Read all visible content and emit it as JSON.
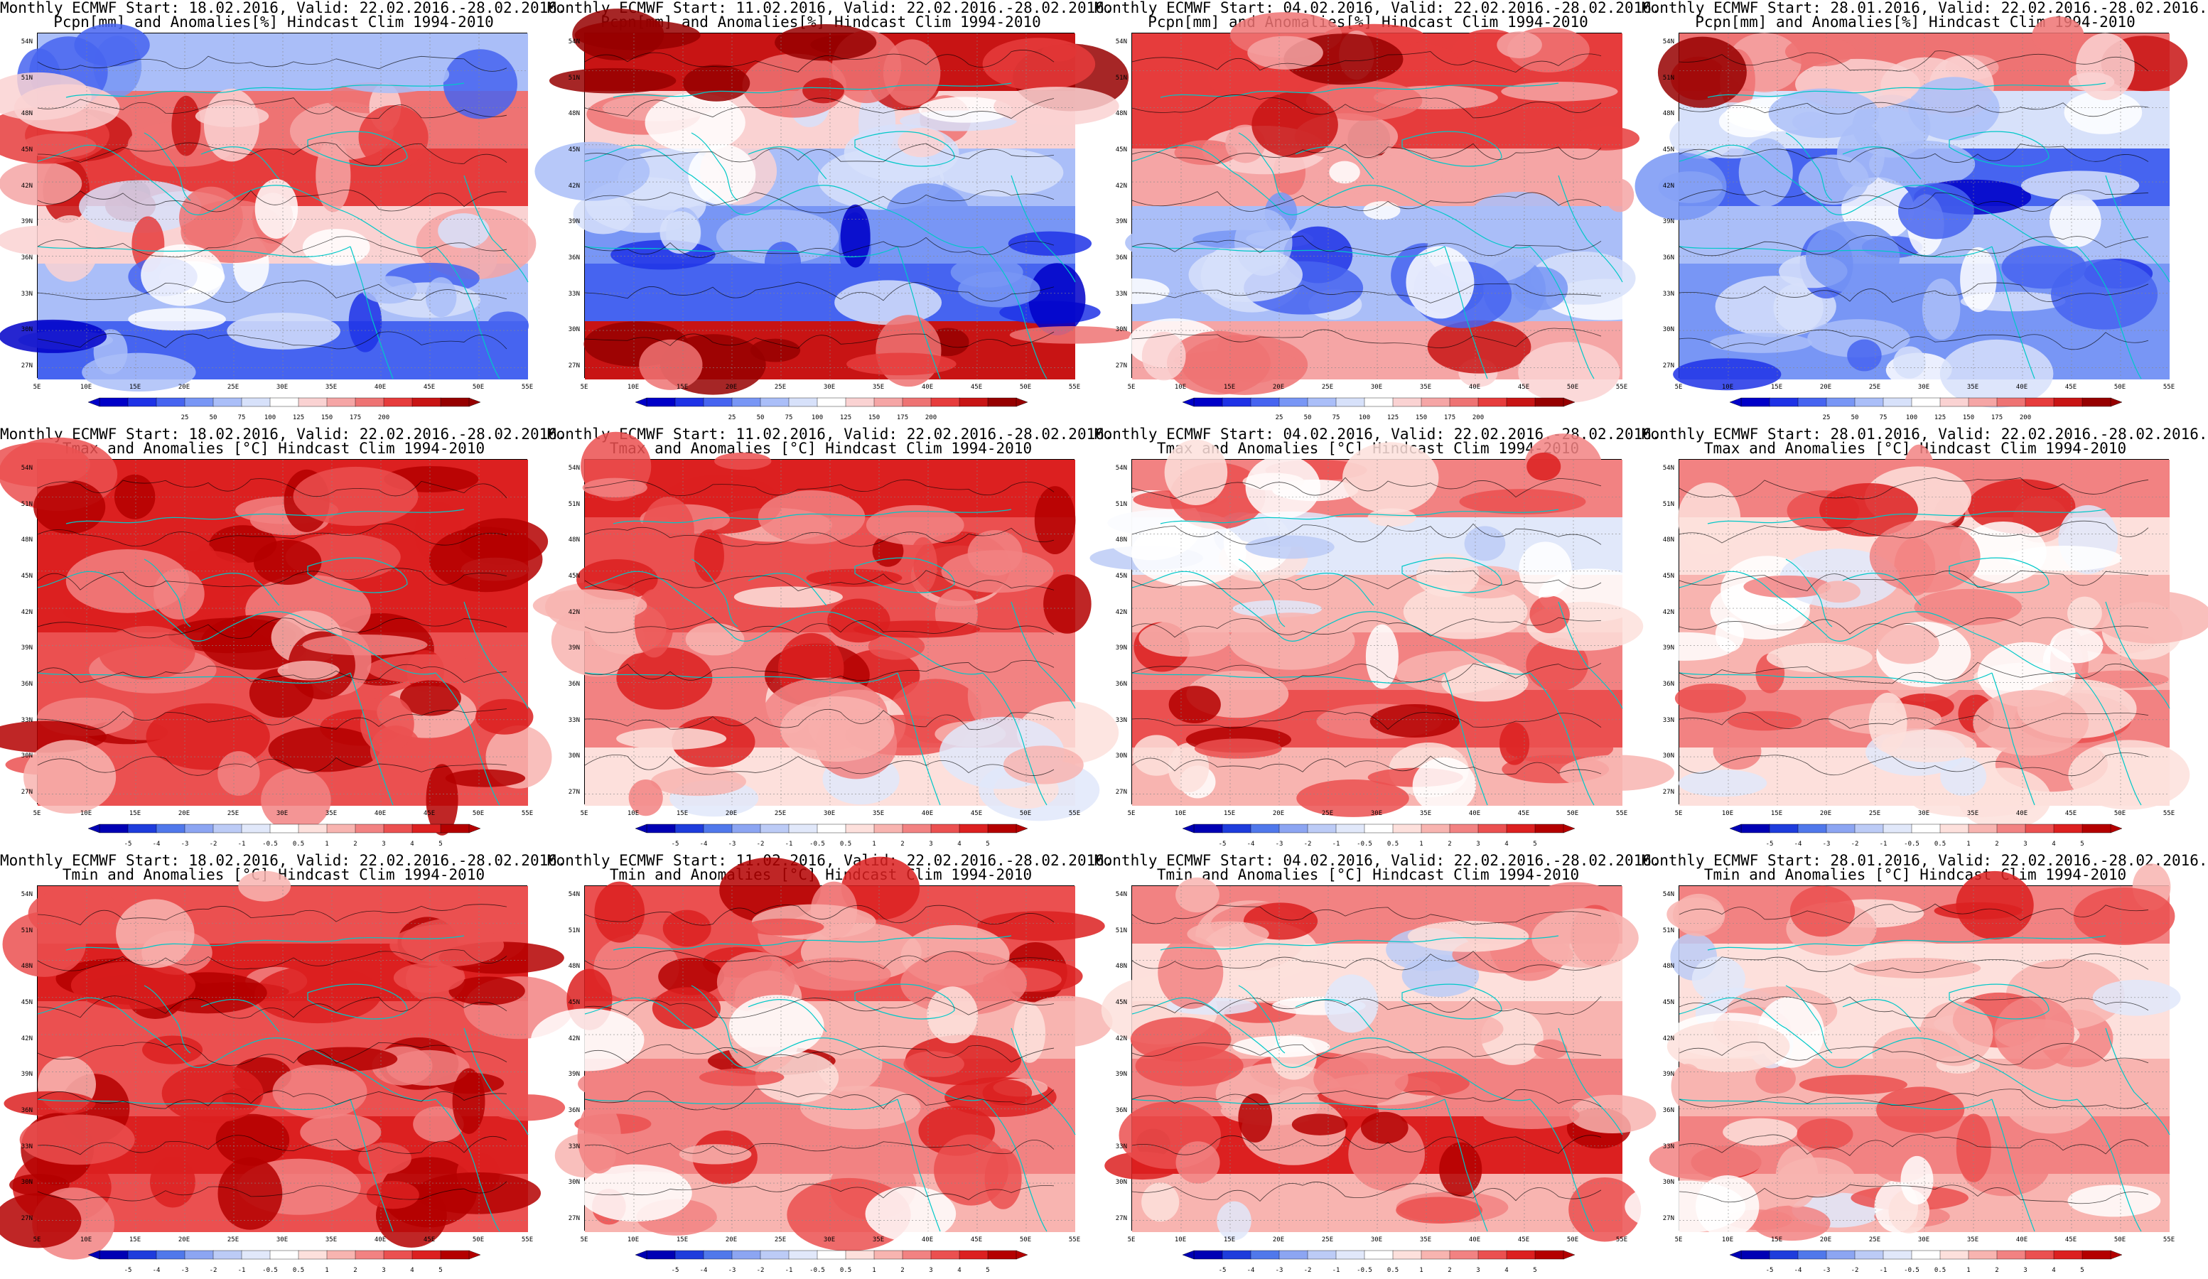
{
  "title_line1": [
    "Monthly ECMWF Start: 18.02.2016, Valid: 22.02.2016.-28.02.2016.",
    "Monthly ECMWF Start: 11.02.2016, Valid: 22.02.2016.-28.02.2016.",
    "Monthly ECMWF Start: 04.02.2016, Valid: 22.02.2016.-28.02.2016.",
    "Monthly ECMWF Start: 28.01.2016, Valid: 22.02.2016.-28.02.2016."
  ],
  "rows": [
    {
      "variable": "precipitation",
      "title_line2": "Pcpn[mm] and Anomalies[%] Hindcast Clim 1994-2010",
      "colorbar_labels": [
        "25",
        "50",
        "75",
        "100",
        "125",
        "150",
        "175",
        "200"
      ]
    },
    {
      "variable": "tmax",
      "title_line2": "Tmax and Anomalies [°C] Hindcast Clim 1994-2010",
      "colorbar_labels": [
        "-5",
        "-4",
        "-3",
        "-2",
        "-1",
        "-0.5",
        "0.5",
        "1",
        "2",
        "3",
        "4",
        "5"
      ]
    },
    {
      "variable": "tmin",
      "title_line2": "Tmin and Anomalies [°C] Hindcast Clim 1994-2010",
      "colorbar_labels": [
        "-5",
        "-4",
        "-3",
        "-2",
        "-1",
        "-0.5",
        "0.5",
        "1",
        "2",
        "3",
        "4",
        "5"
      ]
    }
  ],
  "lat_labels": [
    "54N",
    "51N",
    "48N",
    "45N",
    "42N",
    "39N",
    "36N",
    "33N",
    "30N",
    "27N"
  ],
  "lon_labels": [
    "5E",
    "10E",
    "15E",
    "20E",
    "25E",
    "30E",
    "35E",
    "40E",
    "45E",
    "50E",
    "55E"
  ],
  "colors": {
    "precip_scale": [
      "#0000c8",
      "#1e32e6",
      "#4664f0",
      "#7896f5",
      "#aabef8",
      "#d7e1fa",
      "#ffffff",
      "#fad2d2",
      "#f5a5a5",
      "#ee7373",
      "#e63c3c",
      "#c81414",
      "#960000"
    ],
    "temp_scale": [
      "#0000b4",
      "#1e3cdc",
      "#5078eb",
      "#8ca5f2",
      "#bccbf6",
      "#e1e8fa",
      "#ffffff",
      "#fde0dc",
      "#f8b4b0",
      "#f28282",
      "#eb5050",
      "#dc2020",
      "#b40000"
    ],
    "coastline": "#00c8c8",
    "contour": "#000000"
  },
  "map_shades": [
    [
      [
        -0.6,
        -0.4,
        0.2,
        0.7,
        0.5,
        -0.3
      ],
      [
        0.8,
        -0.6,
        -0.5,
        -0.3,
        0.2,
        0.9
      ],
      [
        0.4,
        -0.3,
        -0.4,
        0.3,
        0.6,
        0.7
      ],
      [
        -0.5,
        -0.5,
        -0.3,
        -0.6,
        -0.2,
        0.5
      ]
    ],
    [
      [
        0.7,
        0.8,
        0.75,
        0.85,
        0.9,
        0.95
      ],
      [
        0.2,
        0.5,
        0.6,
        0.65,
        0.8,
        0.85
      ],
      [
        0.3,
        0.7,
        0.5,
        0.3,
        -0.2,
        0.5
      ],
      [
        0.2,
        0.5,
        0.35,
        0.3,
        0.2,
        0.6
      ]
    ],
    [
      [
        0.8,
        0.85,
        0.75,
        0.8,
        0.9,
        0.7
      ],
      [
        0.3,
        0.5,
        0.55,
        0.45,
        0.7,
        0.75
      ],
      [
        0.3,
        0.85,
        0.5,
        0.3,
        0.1,
        0.6
      ],
      [
        0.3,
        0.6,
        0.35,
        0.25,
        0.1,
        0.55
      ]
    ]
  ]
}
